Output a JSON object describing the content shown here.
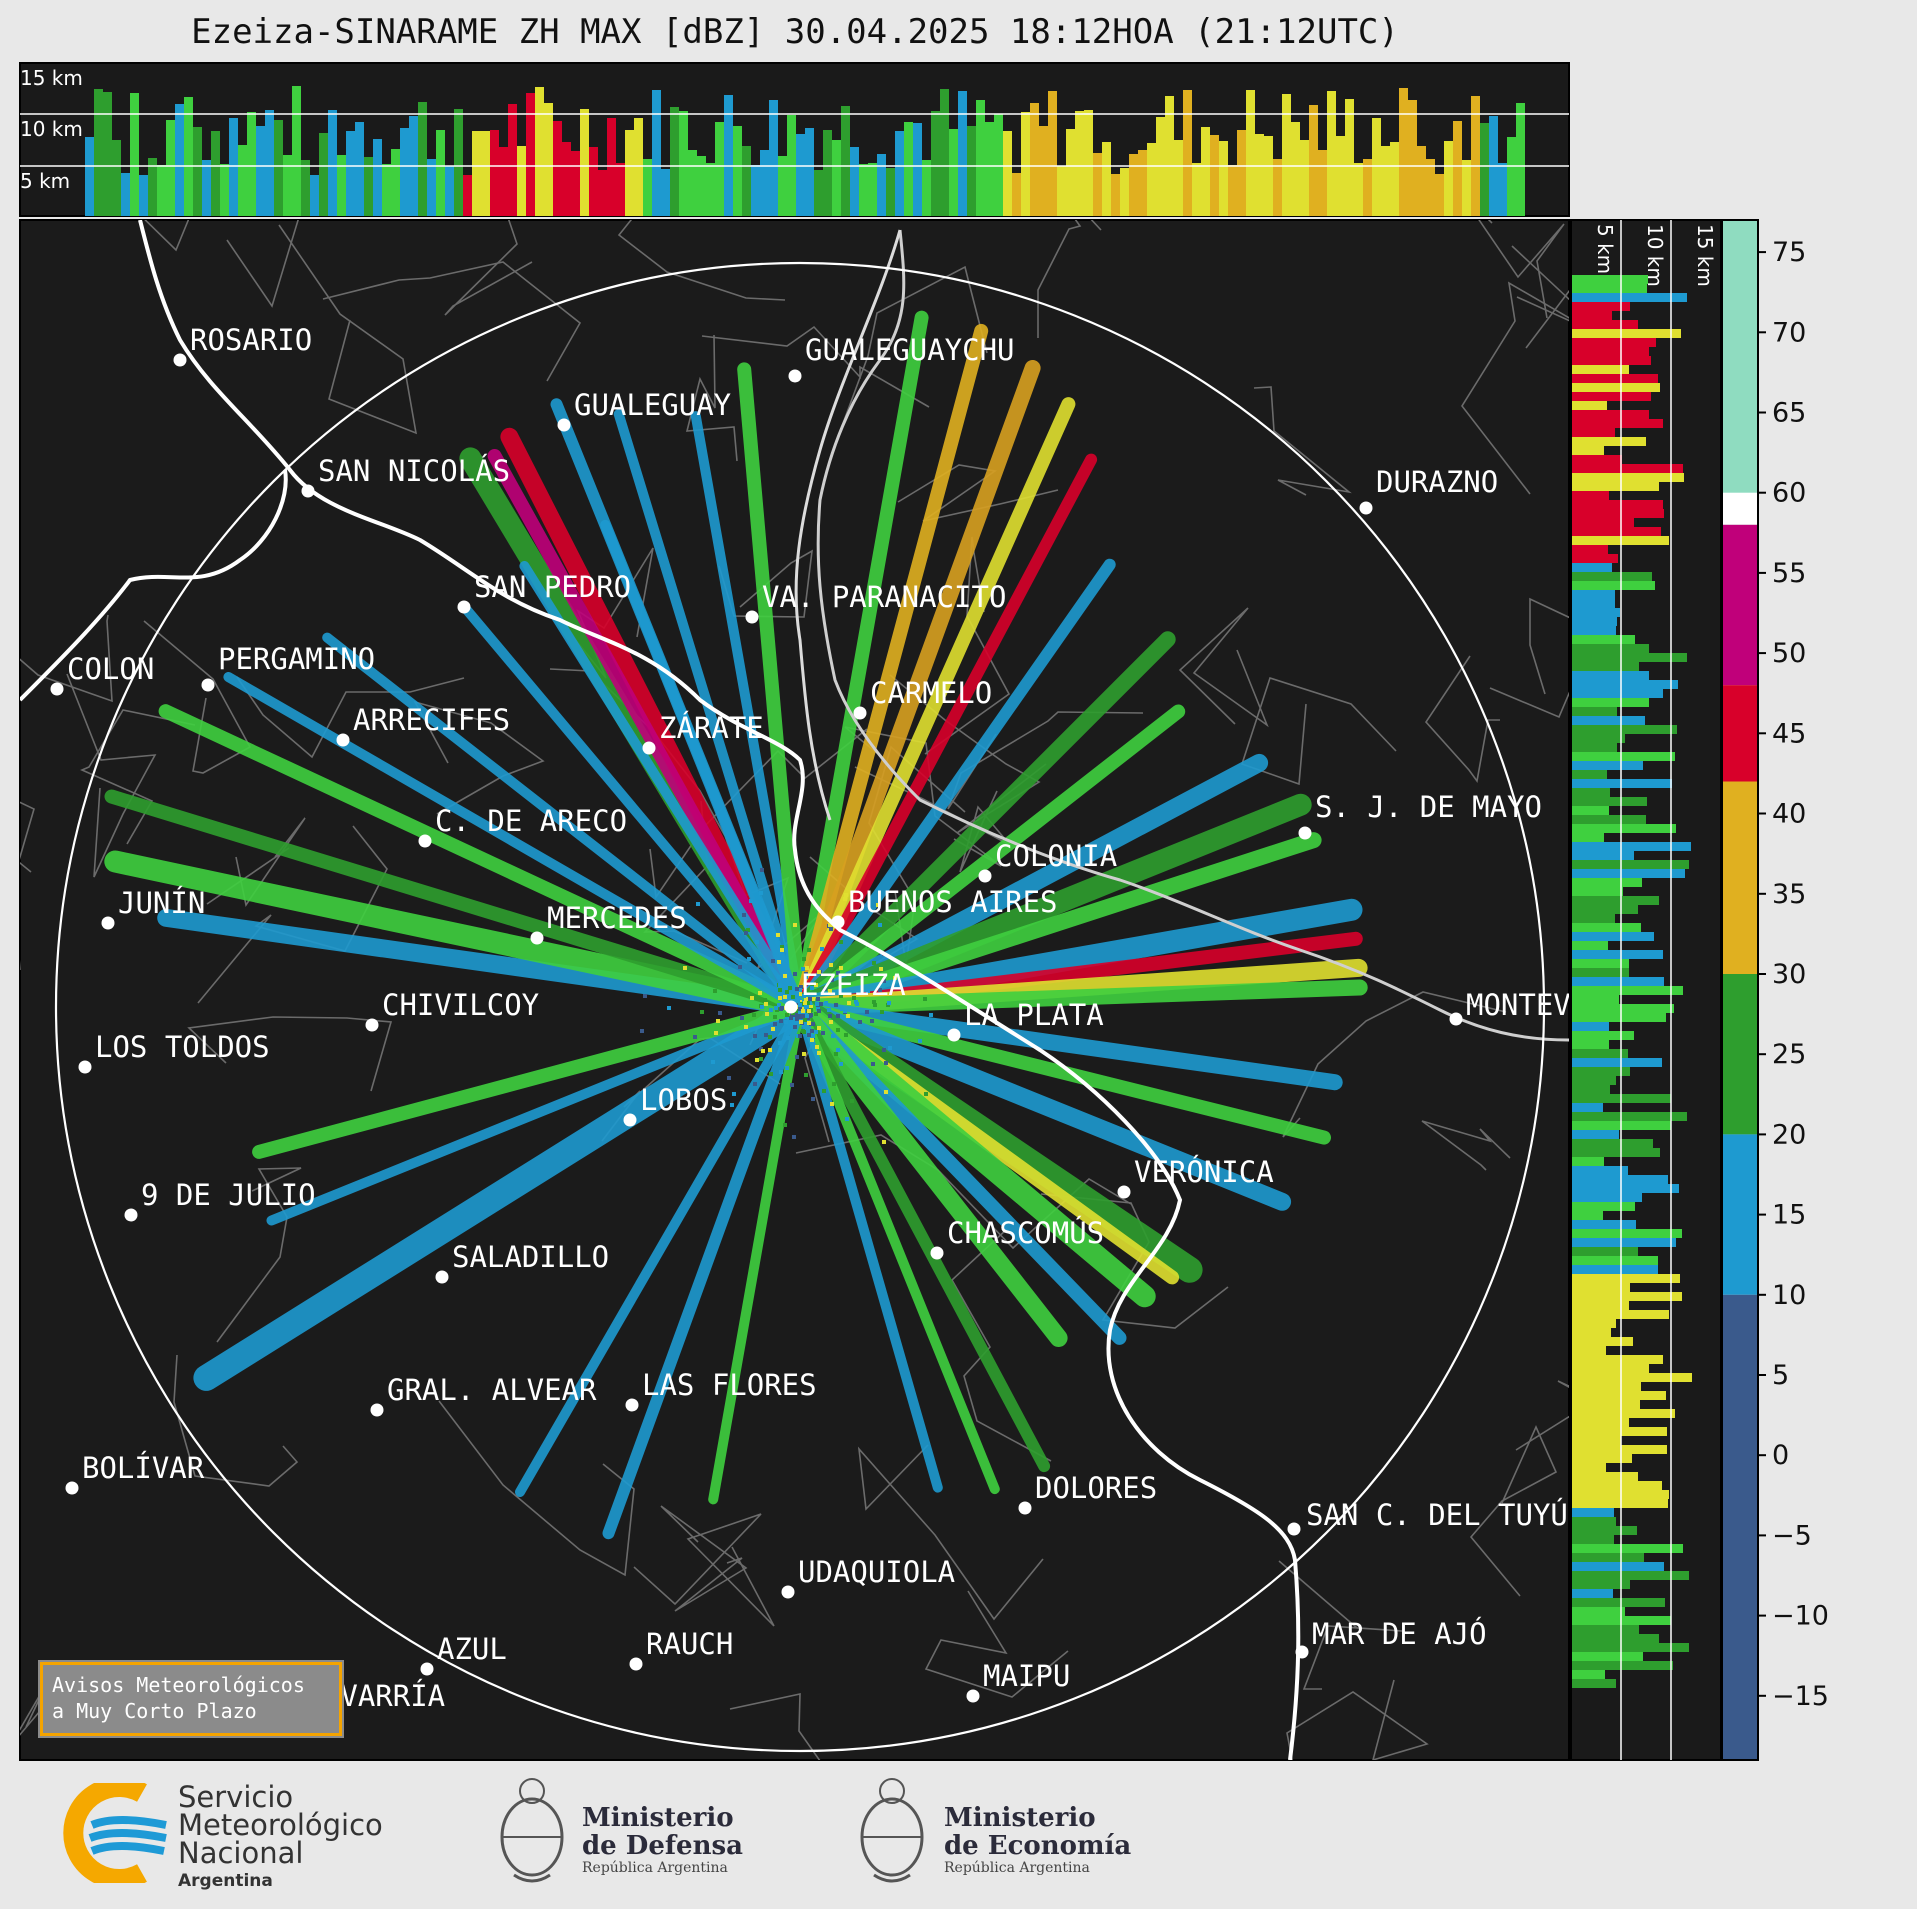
{
  "title": "Ezeiza-SINARAME ZH MAX [dBZ] 30.04.2025 18:12HOA (21:12UTC)",
  "top_panel": {
    "height_labels": [
      "15 km",
      "10 km",
      "5 km"
    ]
  },
  "side_panel": {
    "height_labels": [
      "5 km",
      "10 km",
      "15 km"
    ]
  },
  "colorbar": {
    "ticks": [
      "75",
      "70",
      "65",
      "60",
      "55",
      "50",
      "45",
      "40",
      "35",
      "30",
      "25",
      "20",
      "15",
      "10",
      "5",
      "0",
      "−5",
      "−10",
      "−15"
    ],
    "bands": [
      {
        "from": 58,
        "to": 77,
        "color": "#8fdcc0"
      },
      {
        "from": 58,
        "to": 60,
        "color": "#ffffff"
      },
      {
        "from": 48,
        "to": 58,
        "color": "#c0007a"
      },
      {
        "from": 42,
        "to": 48,
        "color": "#d8002a"
      },
      {
        "from": 30,
        "to": 42,
        "color": "#e0b020"
      },
      {
        "from": 20,
        "to": 30,
        "color": "#2e9e2e"
      },
      {
        "from": 10,
        "to": 20,
        "color": "#1e9ad0"
      },
      {
        "from": -19,
        "to": 10,
        "color": "#3a5a8c"
      }
    ]
  },
  "cities": [
    {
      "name": "ROSARIO"
    },
    {
      "name": "GUALEGUAYCHU"
    },
    {
      "name": "GUALEGUAY"
    },
    {
      "name": "SAN NICOLÁS"
    },
    {
      "name": "DURAZNO"
    },
    {
      "name": "SAN PEDRO"
    },
    {
      "name": "VA. PARANACITO"
    },
    {
      "name": "COLON"
    },
    {
      "name": "PERGAMINO"
    },
    {
      "name": "CARMELO"
    },
    {
      "name": "ARRECIFES"
    },
    {
      "name": "ZÁRATE"
    },
    {
      "name": "S. J. DE MAYO"
    },
    {
      "name": "C. DE ARECO"
    },
    {
      "name": "COLONIA"
    },
    {
      "name": "JUNÍN"
    },
    {
      "name": "BUENOS AIRES"
    },
    {
      "name": "MERCEDES"
    },
    {
      "name": "EZEIZA"
    },
    {
      "name": "MONTEV"
    },
    {
      "name": "CHIVILCOY"
    },
    {
      "name": "LA PLATA"
    },
    {
      "name": "LOS TOLDOS"
    },
    {
      "name": "LOBOS"
    },
    {
      "name": "VERÓNICA"
    },
    {
      "name": "9 DE JULIO"
    },
    {
      "name": "CHASCOMÚS"
    },
    {
      "name": "SALADILLO"
    },
    {
      "name": "GRAL. ALVEAR"
    },
    {
      "name": "LAS FLORES"
    },
    {
      "name": "BOLÍVAR"
    },
    {
      "name": "DOLORES"
    },
    {
      "name": "SAN C. DEL TUYÚ"
    },
    {
      "name": "UDAQUIOLA"
    },
    {
      "name": "MAR DE AJÓ"
    },
    {
      "name": "AZUL"
    },
    {
      "name": "RAUCH"
    },
    {
      "name": "OLAVARRÍA"
    },
    {
      "name": "MAIPU"
    }
  ],
  "warning_box": {
    "line1": "Avisos Meteorológicos",
    "line2": "a Muy Corto Plazo"
  },
  "logos": {
    "smn": {
      "line1": "Servicio",
      "line2": "Meteorológico",
      "line3": "Nacional",
      "line4": "Argentina",
      "color_orange": "#f5a800",
      "color_blue": "#1e9ad6"
    },
    "defensa": {
      "line1": "Ministerio",
      "line2": "de Defensa",
      "line3": "República Argentina"
    },
    "economia": {
      "line1": "Ministerio",
      "line2": "de Economía",
      "line3": "República Argentina"
    }
  }
}
